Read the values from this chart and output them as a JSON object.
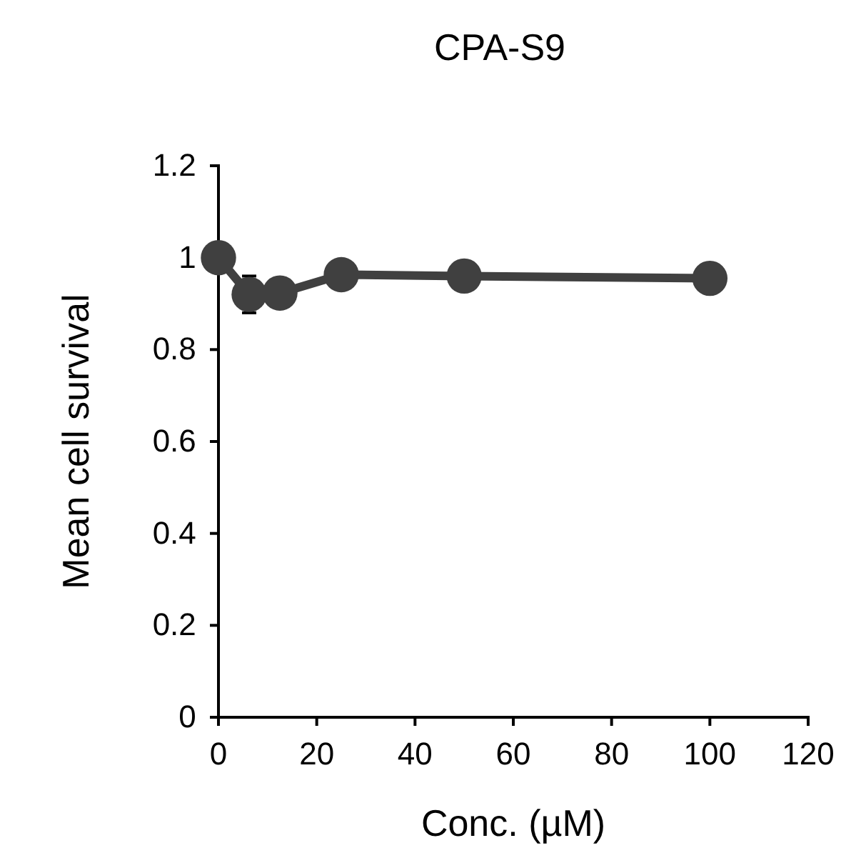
{
  "chart_data": {
    "type": "line",
    "title": "CPA-S9",
    "xlabel": "Conc. (µM)",
    "ylabel": "Mean cell survival",
    "x": [
      0,
      6.25,
      12.5,
      25,
      50,
      100
    ],
    "series": [
      {
        "color": "#404040",
        "values": [
          1.0,
          0.92,
          0.923,
          0.963,
          0.96,
          0.955
        ],
        "errors": [
          null,
          0.04,
          0.03,
          0.025,
          0.03,
          null
        ]
      }
    ],
    "xlim": [
      0,
      120
    ],
    "xticks": [
      0,
      20,
      40,
      60,
      80,
      100,
      120
    ],
    "ylim": [
      0,
      1.2
    ],
    "yticks": [
      0,
      0.2,
      0.4,
      0.6,
      0.8,
      1,
      1.2
    ],
    "marker": "circle",
    "line_style": "solid"
  }
}
